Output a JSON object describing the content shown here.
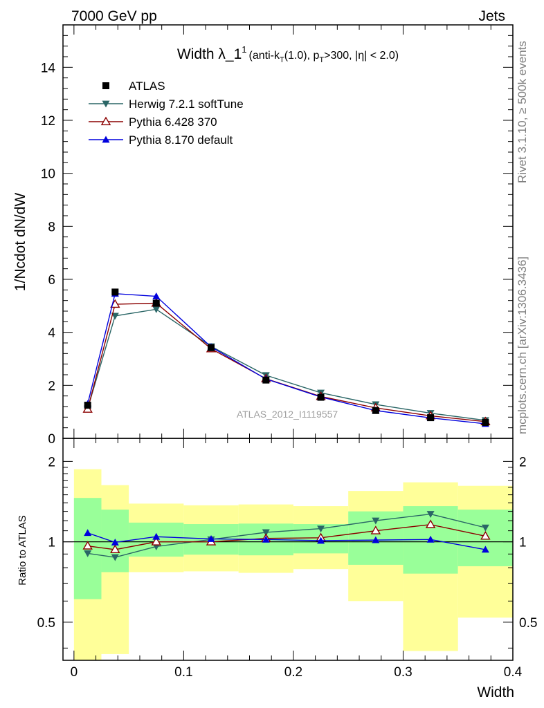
{
  "header": {
    "left": "7000 GeV pp",
    "right": "Jets"
  },
  "side_labels": {
    "rivet": "Rivet 3.1.10, ≥ 500k events",
    "mcplots": "mcplots.cern.ch [arXiv:1306.3436]"
  },
  "title": {
    "main": "Width λ_1",
    "main_sup": "1",
    "sub_a": "(anti-k",
    "sub_a_sub": "T",
    "sub_b": "(1.0), p",
    "sub_b_sub": "T",
    "sub_c": ">300, |η| < 2.0)"
  },
  "watermark": "ATLAS_2012_I1119557",
  "colors": {
    "atlas": "#000000",
    "herwig": "#2a6666",
    "pythia6": "#8b0000",
    "pythia8": "#0000dd",
    "band_inner": "#99ff99",
    "band_outer": "#ffff99"
  },
  "chart_data": [
    {
      "type": "line",
      "panel": "main",
      "ylabel": "1/Ncdot dN/dW",
      "xlim": [
        -0.01,
        0.4
      ],
      "ylim": [
        0,
        15.6
      ],
      "y_ticks": [
        0,
        2,
        4,
        6,
        8,
        10,
        12,
        14
      ],
      "y_tick_labels": [
        "0",
        "2",
        "4",
        "6",
        "8",
        "10",
        "12",
        "14"
      ],
      "x": [
        0.0125,
        0.0375,
        0.075,
        0.125,
        0.175,
        0.225,
        0.275,
        0.325,
        0.375
      ],
      "series": [
        {
          "name": "ATLAS",
          "marker": "square",
          "values": [
            1.25,
            5.52,
            5.1,
            3.42,
            2.2,
            1.55,
            1.05,
            0.78,
            0.6
          ]
        },
        {
          "name": "Herwig 7.2.1 softTune",
          "marker": "triangle-down",
          "values": [
            1.12,
            4.62,
            4.87,
            3.47,
            2.38,
            1.72,
            1.28,
            0.95,
            0.68
          ]
        },
        {
          "name": "Pythia 6.428 370",
          "marker": "triangle-open",
          "values": [
            1.1,
            5.06,
            5.1,
            3.38,
            2.25,
            1.58,
            1.15,
            0.85,
            0.63
          ]
        },
        {
          "name": "Pythia 8.170 default",
          "marker": "triangle-up",
          "values": [
            1.3,
            5.46,
            5.36,
            3.45,
            2.24,
            1.56,
            1.05,
            0.77,
            0.55
          ]
        }
      ]
    },
    {
      "type": "line",
      "panel": "ratio",
      "ylabel": "Ratio to ATLAS",
      "xlabel": "Width",
      "ylim_log": [
        0.36,
        2.44
      ],
      "y_ticks": [
        0.5,
        1,
        2
      ],
      "y_tick_labels": [
        "0.5",
        "1",
        "2"
      ],
      "x_ticks": [
        0,
        0.1,
        0.2,
        0.3,
        0.4
      ],
      "x_tick_labels": [
        "0",
        "0.1",
        "0.2",
        "0.3",
        "0.4"
      ],
      "bins": [
        [
          0,
          0.025
        ],
        [
          0.025,
          0.05
        ],
        [
          0.05,
          0.1
        ],
        [
          0.1,
          0.15
        ],
        [
          0.15,
          0.2
        ],
        [
          0.2,
          0.25
        ],
        [
          0.25,
          0.3
        ],
        [
          0.3,
          0.35
        ],
        [
          0.35,
          0.4
        ]
      ],
      "band_inner": [
        [
          0.61,
          1.46
        ],
        [
          0.77,
          1.32
        ],
        [
          0.88,
          1.18
        ],
        [
          0.895,
          1.165
        ],
        [
          0.89,
          1.17
        ],
        [
          0.905,
          1.165
        ],
        [
          0.82,
          1.3
        ],
        [
          0.76,
          1.36
        ],
        [
          0.81,
          1.32
        ]
      ],
      "band_outer": [
        [
          0.36,
          1.87
        ],
        [
          0.38,
          1.63
        ],
        [
          0.77,
          1.39
        ],
        [
          0.775,
          1.37
        ],
        [
          0.765,
          1.38
        ],
        [
          0.79,
          1.36
        ],
        [
          0.6,
          1.55
        ],
        [
          0.39,
          1.67
        ],
        [
          0.52,
          1.62
        ]
      ],
      "x": [
        0.0125,
        0.0375,
        0.075,
        0.125,
        0.175,
        0.225,
        0.275,
        0.325,
        0.375
      ],
      "series": [
        {
          "name": "Herwig 7.2.1 softTune",
          "marker": "triangle-down",
          "values": [
            0.905,
            0.875,
            0.96,
            1.02,
            1.085,
            1.12,
            1.2,
            1.27,
            1.13
          ]
        },
        {
          "name": "Pythia 6.428 370",
          "marker": "triangle-open",
          "values": [
            0.965,
            0.935,
            1.0,
            1.0,
            1.03,
            1.035,
            1.1,
            1.16,
            1.05
          ]
        },
        {
          "name": "Pythia 8.170 default",
          "marker": "triangle-up",
          "values": [
            1.08,
            0.995,
            1.045,
            1.025,
            1.02,
            1.01,
            1.015,
            1.02,
            0.935
          ]
        }
      ]
    }
  ]
}
